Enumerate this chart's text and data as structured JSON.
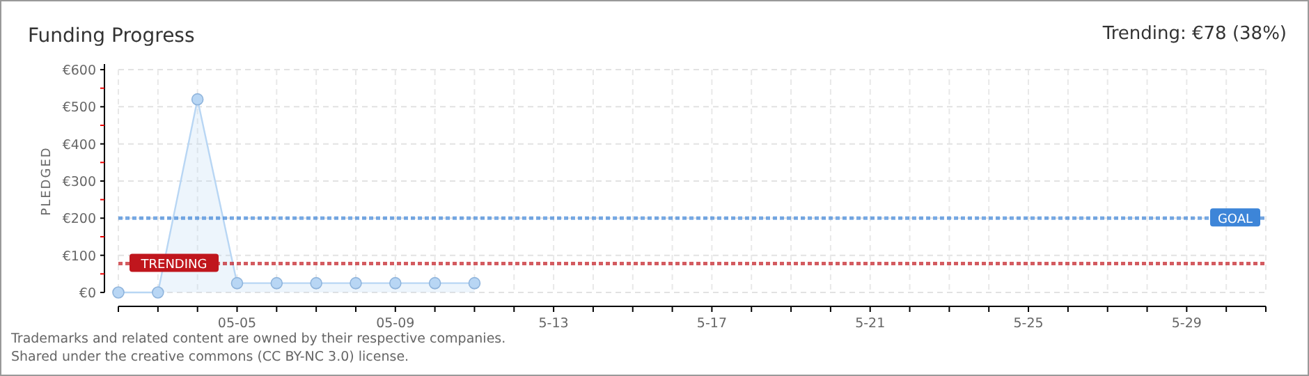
{
  "chart_data": {
    "type": "area",
    "title": "Funding Progress",
    "ylabel": "PLEDGED",
    "x": [
      "--05-02",
      "--05-03",
      "--05-04",
      "--05-05",
      "--05-06",
      "--05-07",
      "--05-08",
      "--05-09",
      "--05-10",
      "--05-11"
    ],
    "series": [
      {
        "color": "#b8d6f4",
        "values": [
          0,
          0,
          520,
          25,
          25,
          25,
          25,
          25,
          25,
          25
        ]
      }
    ],
    "xlim": [
      "--05-02",
      "--05-31"
    ],
    "xticks": [
      {
        "value": "--05-02",
        "label": null
      },
      {
        "value": "--05-03",
        "label": null
      },
      {
        "value": "--05-04",
        "label": null
      },
      {
        "value": "--05-05",
        "label": "05-05"
      },
      {
        "value": "--05-06",
        "label": null
      },
      {
        "value": "--05-07",
        "label": null
      },
      {
        "value": "--05-08",
        "label": null
      },
      {
        "value": "--05-09",
        "label": "05-09"
      },
      {
        "value": "--05-10",
        "label": null
      },
      {
        "value": "--05-11",
        "label": null
      },
      {
        "value": "--05-12",
        "label": null
      },
      {
        "value": "--05-13",
        "label": "5-13"
      },
      {
        "value": "--05-14",
        "label": null
      },
      {
        "value": "--05-15",
        "label": null
      },
      {
        "value": "--05-16",
        "label": null
      },
      {
        "value": "--05-17",
        "label": "5-17"
      },
      {
        "value": "--05-18",
        "label": null
      },
      {
        "value": "--05-19",
        "label": null
      },
      {
        "value": "--05-20",
        "label": null
      },
      {
        "value": "--05-21",
        "label": "5-21"
      },
      {
        "value": "--05-22",
        "label": null
      },
      {
        "value": "--05-23",
        "label": null
      },
      {
        "value": "--05-24",
        "label": null
      },
      {
        "value": "--05-25",
        "label": "5-25"
      },
      {
        "value": "--05-26",
        "label": null
      },
      {
        "value": "--05-27",
        "label": null
      },
      {
        "value": "--05-28",
        "label": null
      },
      {
        "value": "--05-29",
        "label": "5-29"
      },
      {
        "value": "--05-30",
        "label": null
      },
      {
        "value": "--05-31",
        "label": null
      }
    ],
    "ylim": [
      0,
      600
    ],
    "yticks": [
      {
        "value": 0,
        "label": "€0"
      },
      {
        "value": 50,
        "label": null
      },
      {
        "value": 100,
        "label": "€100"
      },
      {
        "value": 150,
        "label": null
      },
      {
        "value": 200,
        "label": "€200"
      },
      {
        "value": 250,
        "label": null
      },
      {
        "value": 300,
        "label": "€300"
      },
      {
        "value": 350,
        "label": null
      },
      {
        "value": 400,
        "label": "€400"
      },
      {
        "value": 450,
        "label": null
      },
      {
        "value": 500,
        "label": "€500"
      },
      {
        "value": 550,
        "label": null
      },
      {
        "value": 600,
        "label": "€600"
      }
    ],
    "grid": true,
    "marker": "circle",
    "ref_lines": [
      {
        "axis": "y",
        "value": 200,
        "label": "GOAL",
        "color": "#3d85d8",
        "line_style": "dotted"
      },
      {
        "axis": "y",
        "value": 78,
        "label": "TRENDING",
        "color": "#c0161d",
        "line_style": "dotted"
      }
    ],
    "annotations": [
      "Trending: €78 (38%)",
      "Trademarks and related content are owned by their respective companies.",
      "Shared under the creative commons (CC BY-NC 3.0) license."
    ]
  }
}
